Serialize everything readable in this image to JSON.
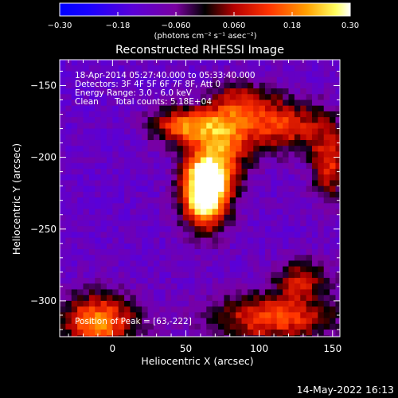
{
  "chart_data": {
    "type": "heatmap",
    "title": "Reconstructed RHESSI Image",
    "xlabel": "Heliocentric X (arcsec)",
    "ylabel": "Heliocentric Y (arcsec)",
    "xlim": [
      -36,
      155
    ],
    "ylim": [
      -325,
      -132
    ],
    "xticks": [
      0,
      50,
      100,
      150
    ],
    "yticks": [
      -150,
      -200,
      -250,
      -300
    ],
    "colorbar": {
      "label": "(photons cm⁻² s⁻¹ asec⁻²)",
      "range": [
        -0.3,
        0.3
      ],
      "ticks": [
        "-0.30",
        "-0.18",
        "-0.060",
        "0.060",
        "0.18",
        "0.30"
      ]
    },
    "annotations": {
      "time_range": "18-Apr-2014 05:27:40.000 to 05:33:40.000",
      "detectors": "Detectors: 3F 4F 5F 6F 7F 8F, Att 0",
      "energy_range": "Energy Range: 3.0 - 6.0 keV",
      "clean_label": "Clean",
      "total_counts": "Total counts: 5.18E+04",
      "peak_position": "Position of Peak = [63,-222]"
    },
    "peak": [
      63,
      -222
    ],
    "intensity_sources": [
      {
        "x": 63,
        "y": -222,
        "sx": 11,
        "sy": 18,
        "amp": 0.56
      },
      {
        "x": 50,
        "y": -178,
        "sx": 16,
        "sy": 9,
        "amp": 0.3
      },
      {
        "x": 78,
        "y": -188,
        "sx": 12,
        "sy": 22,
        "amp": 0.22
      },
      {
        "x": 115,
        "y": -178,
        "sx": 22,
        "sy": 13,
        "amp": 0.24
      },
      {
        "x": 148,
        "y": -205,
        "sx": 9,
        "sy": 18,
        "amp": 0.22
      },
      {
        "x": 92,
        "y": -160,
        "sx": 14,
        "sy": 9,
        "amp": 0.12
      },
      {
        "x": -10,
        "y": -315,
        "sx": 18,
        "sy": 14,
        "amp": 0.32
      },
      {
        "x": 110,
        "y": -312,
        "sx": 30,
        "sy": 12,
        "amp": 0.26
      },
      {
        "x": 130,
        "y": -285,
        "sx": 14,
        "sy": 10,
        "amp": 0.18
      }
    ],
    "background_level": -0.12
  },
  "footer": {
    "date": "14-May-2022 16:13"
  }
}
